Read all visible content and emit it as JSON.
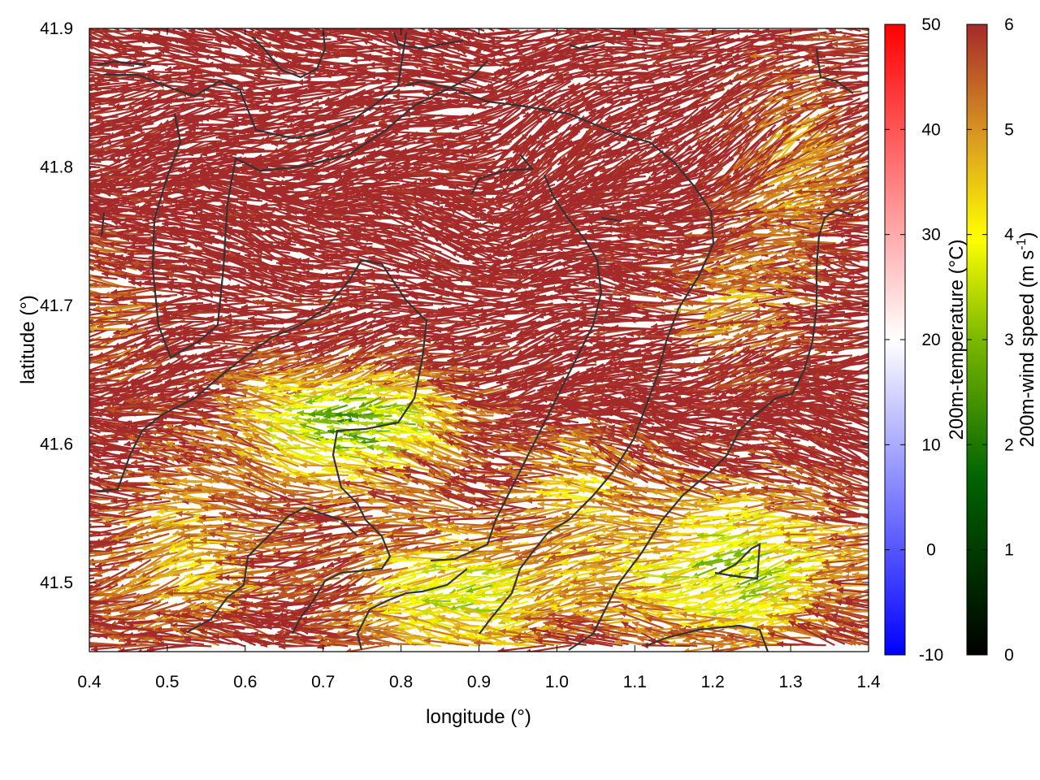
{
  "chart_data": {
    "type": "vector-field",
    "xlabel": "longitude (°)",
    "ylabel": "latitude (°)",
    "xlim": [
      0.4,
      1.4
    ],
    "ylim": [
      41.45,
      41.9
    ],
    "xticks": [
      "0.4",
      "0.5",
      "0.6",
      "0.7",
      "0.8",
      "0.9",
      "1.0",
      "1.1",
      "1.2",
      "1.3",
      "1.4"
    ],
    "yticks": [
      "41.5",
      "41.6",
      "41.7",
      "41.8",
      "41.9"
    ],
    "grid": false,
    "vector_color": "wind speed",
    "temperature_colorbar": {
      "label": "200m-temperature (°C)",
      "range": [
        -10,
        50
      ],
      "ticks": [
        "-10",
        "0",
        "10",
        "20",
        "30",
        "40",
        "50"
      ],
      "colors": [
        "#0000ff",
        "#ffffff",
        "#ff0000"
      ]
    },
    "wind_colorbar": {
      "label": "200m-wind speed (m s-1)",
      "label_main": "200m-wind speed (m s",
      "label_sup": "-1",
      "label_end": ")",
      "range": [
        0,
        6
      ],
      "ticks": [
        "0",
        "1",
        "2",
        "3",
        "4",
        "5",
        "6"
      ],
      "colors": [
        "#000000",
        "#006400",
        "#7ab800",
        "#ffff00",
        "#d99a20",
        "#c46a20",
        "#a52a2a"
      ]
    },
    "coastline_color": "#333333"
  }
}
